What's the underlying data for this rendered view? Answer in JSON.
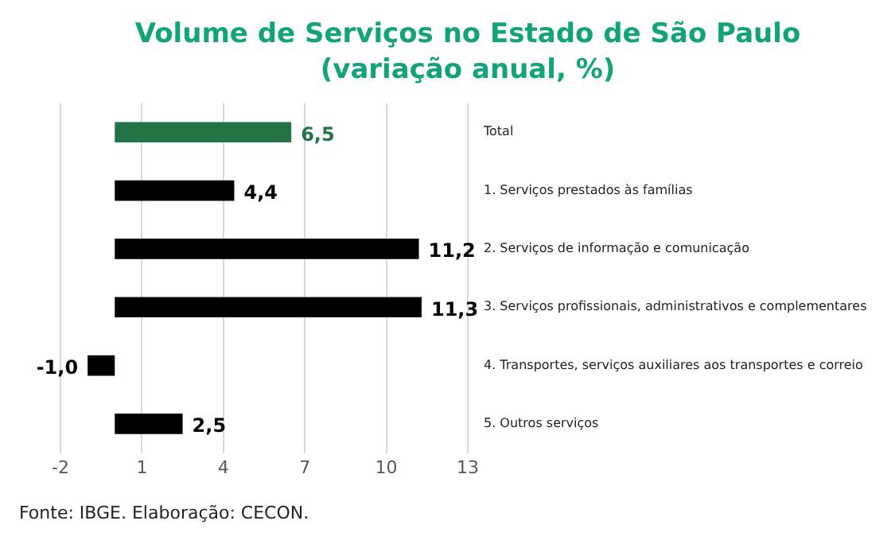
{
  "chart_data": {
    "type": "bar",
    "orientation": "horizontal",
    "title": "Volume de Serviços no Estado de São Paulo",
    "subtitle": "(variação anual, %)",
    "categories": [
      "Total",
      "1. Serviços prestados às famílias",
      "2. Serviços de informação e comunicação",
      "3. Serviços profissionais, administrativos e complementares",
      "4. Transportes, serviços auxiliares aos transportes e correio",
      "5. Outros serviços"
    ],
    "values": [
      6.5,
      4.4,
      11.2,
      11.3,
      -1.0,
      2.5
    ],
    "value_labels": [
      "6,5",
      "4,4",
      "11,2",
      "11,3",
      "-1,0",
      "2,5"
    ],
    "colors": [
      "#217346",
      "#000000",
      "#000000",
      "#000000",
      "#000000",
      "#000000"
    ],
    "xlim": [
      -2,
      13
    ],
    "xticks": [
      -2,
      1,
      4,
      7,
      10,
      13
    ],
    "grid": "x",
    "legend": false,
    "annotations": [
      "Fonte: IBGE. Elaboração: CECON."
    ]
  }
}
